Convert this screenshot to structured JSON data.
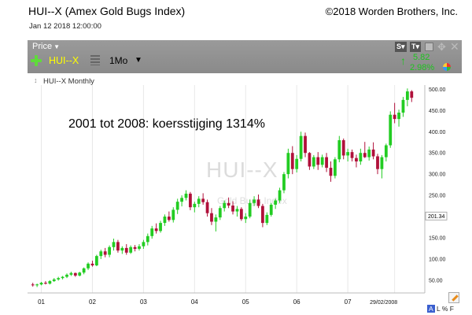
{
  "header": {
    "title": "HUI--X (Amex Gold Bugs Index)",
    "copyright": "©2018 Worden Brothers, Inc.",
    "datestamp": "Jan 12 2018 12:00:00"
  },
  "toolbar": {
    "price_label": "Price",
    "symbol": "HUI--X",
    "period": "1Mo",
    "btn_s": "S",
    "btn_t": "T",
    "change_value": "5.82",
    "change_pct": "2.98%"
  },
  "series_label": "HUI--X Monthly",
  "annotation": "2001 tot 2008: koersstijging 1314%",
  "watermark": {
    "symbol": "HUI--X",
    "name": "Gold Bugs Index"
  },
  "bottom_tools": {
    "a": "A",
    "l": "L",
    "pct": "%",
    "f": "F"
  },
  "colors": {
    "up": "#22cc22",
    "down": "#b0103a",
    "toolbar": "#8f8f8f",
    "change": "#1ec41e"
  },
  "icons": [
    "plus-icon",
    "list-icon",
    "save-icon",
    "move-icon",
    "close-icon",
    "up-arrow-icon",
    "pie-icon",
    "pencil-icon",
    "drag-icon"
  ],
  "chart_data": {
    "type": "candlestick",
    "interval": "monthly",
    "y_ticks": [
      "500.00",
      "450.00",
      "400.00",
      "350.00",
      "300.00",
      "250.00",
      "200.00",
      "150.00",
      "100.00",
      "50.00"
    ],
    "y_tick_values": [
      500,
      450,
      400,
      350,
      300,
      250,
      200,
      150,
      100,
      50
    ],
    "x_ticks": [
      "01",
      "02",
      "03",
      "04",
      "05",
      "06",
      "07"
    ],
    "x_tick_index": [
      2,
      14,
      26,
      38,
      50,
      62,
      74
    ],
    "date_tick": "29/02/2008",
    "date_tick_index": 85,
    "last_label": "201.34",
    "last_label_value": 201.34,
    "ylim": [
      20,
      510
    ],
    "grid": "vertical",
    "candles": [
      [
        40,
        44,
        35,
        38
      ],
      [
        38,
        42,
        34,
        40
      ],
      [
        40,
        46,
        38,
        44
      ],
      [
        44,
        48,
        40,
        42
      ],
      [
        42,
        50,
        40,
        48
      ],
      [
        48,
        55,
        46,
        52
      ],
      [
        52,
        58,
        49,
        55
      ],
      [
        55,
        60,
        52,
        58
      ],
      [
        58,
        66,
        55,
        63
      ],
      [
        63,
        70,
        60,
        67
      ],
      [
        67,
        68,
        58,
        61
      ],
      [
        61,
        70,
        59,
        68
      ],
      [
        68,
        80,
        64,
        78
      ],
      [
        78,
        92,
        74,
        89
      ],
      [
        89,
        96,
        82,
        85
      ],
      [
        85,
        110,
        83,
        107
      ],
      [
        107,
        122,
        100,
        118
      ],
      [
        118,
        126,
        104,
        110
      ],
      [
        110,
        132,
        104,
        128
      ],
      [
        128,
        148,
        120,
        140
      ],
      [
        140,
        145,
        115,
        120
      ],
      [
        120,
        130,
        112,
        126
      ],
      [
        126,
        135,
        110,
        115
      ],
      [
        115,
        132,
        112,
        128
      ],
      [
        128,
        133,
        118,
        124
      ],
      [
        124,
        135,
        120,
        130
      ],
      [
        130,
        145,
        124,
        140
      ],
      [
        140,
        160,
        132,
        154
      ],
      [
        154,
        178,
        148,
        172
      ],
      [
        172,
        184,
        160,
        166
      ],
      [
        166,
        190,
        162,
        185
      ],
      [
        185,
        205,
        178,
        200
      ],
      [
        200,
        212,
        188,
        192
      ],
      [
        192,
        222,
        186,
        216
      ],
      [
        216,
        242,
        206,
        235
      ],
      [
        235,
        250,
        224,
        244
      ],
      [
        244,
        262,
        238,
        254
      ],
      [
        254,
        258,
        215,
        222
      ],
      [
        222,
        235,
        210,
        230
      ],
      [
        230,
        248,
        222,
        242
      ],
      [
        242,
        255,
        228,
        234
      ],
      [
        234,
        240,
        200,
        208
      ],
      [
        208,
        220,
        180,
        188
      ],
      [
        188,
        205,
        165,
        198
      ],
      [
        198,
        225,
        192,
        220
      ],
      [
        220,
        238,
        212,
        232
      ],
      [
        232,
        245,
        220,
        226
      ],
      [
        226,
        236,
        205,
        212
      ],
      [
        212,
        225,
        200,
        218
      ],
      [
        218,
        222,
        190,
        194
      ],
      [
        194,
        208,
        185,
        200
      ],
      [
        200,
        240,
        196,
        232
      ],
      [
        232,
        248,
        225,
        240
      ],
      [
        240,
        252,
        220,
        225
      ],
      [
        225,
        230,
        175,
        185
      ],
      [
        185,
        210,
        180,
        204
      ],
      [
        204,
        232,
        200,
        228
      ],
      [
        228,
        242,
        218,
        238
      ],
      [
        238,
        268,
        232,
        262
      ],
      [
        262,
        305,
        255,
        300
      ],
      [
        300,
        360,
        290,
        350
      ],
      [
        350,
        366,
        300,
        312
      ],
      [
        312,
        345,
        304,
        336
      ],
      [
        336,
        400,
        330,
        390
      ],
      [
        390,
        398,
        340,
        350
      ],
      [
        350,
        352,
        310,
        318
      ],
      [
        318,
        345,
        312,
        340
      ],
      [
        340,
        352,
        310,
        322
      ],
      [
        322,
        346,
        316,
        340
      ],
      [
        340,
        350,
        305,
        315
      ],
      [
        315,
        330,
        282,
        296
      ],
      [
        296,
        340,
        290,
        335
      ],
      [
        335,
        390,
        328,
        380
      ],
      [
        380,
        384,
        335,
        344
      ],
      [
        344,
        360,
        330,
        352
      ],
      [
        352,
        358,
        330,
        338
      ],
      [
        338,
        346,
        316,
        330
      ],
      [
        330,
        360,
        322,
        350
      ],
      [
        350,
        376,
        338,
        340
      ],
      [
        340,
        365,
        332,
        358
      ],
      [
        358,
        375,
        335,
        342
      ],
      [
        342,
        348,
        300,
        312
      ],
      [
        312,
        345,
        290,
        340
      ],
      [
        340,
        372,
        330,
        368
      ],
      [
        368,
        448,
        362,
        440
      ],
      [
        440,
        468,
        420,
        430
      ],
      [
        430,
        452,
        412,
        445
      ],
      [
        445,
        482,
        435,
        475
      ],
      [
        475,
        502,
        460,
        495
      ],
      [
        495,
        498,
        470,
        480
      ]
    ]
  }
}
